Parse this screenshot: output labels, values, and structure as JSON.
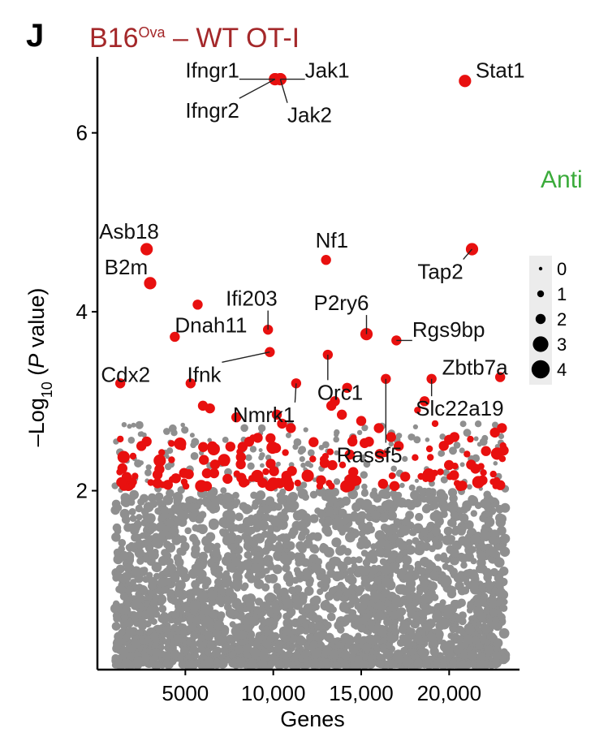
{
  "panel": {
    "letter": "J"
  },
  "title": {
    "base": "B16",
    "superscript": "Ova",
    "rest": " – WT OT-I"
  },
  "side_note": "Anti",
  "colors": {
    "significant": "#e8100f",
    "background": "#8f8f8f",
    "title": "#a4282a",
    "side_note": "#3bab3b"
  },
  "chart_data": {
    "type": "scatter",
    "xlabel": "Genes",
    "ylabel_parts": [
      "–Log",
      "10",
      " (",
      "P",
      " value)"
    ],
    "x_ticks": [
      {
        "value": 5000,
        "label": "5000"
      },
      {
        "value": 10000,
        "label": "10,000"
      },
      {
        "value": 15000,
        "label": "15,000"
      },
      {
        "value": 20000,
        "label": "20,000"
      }
    ],
    "y_ticks": [
      {
        "value": 2,
        "label": "2"
      },
      {
        "value": 4,
        "label": "4"
      },
      {
        "value": 6,
        "label": "6"
      }
    ],
    "xlim": [
      0,
      24000
    ],
    "ylim": [
      0,
      6.85
    ],
    "grid": false,
    "legend": {
      "placement": "right",
      "entries": [
        {
          "label": "0",
          "size": 0
        },
        {
          "label": "1",
          "size": 1
        },
        {
          "label": "2",
          "size": 2
        },
        {
          "label": "3",
          "size": 3
        },
        {
          "label": "4",
          "size": 4
        }
      ]
    },
    "background_band": {
      "x_min": 1000,
      "x_max": 23200,
      "y_min": 0.05,
      "y_max": 2.0
    },
    "significant_threshold": 2.05,
    "labeled_genes": [
      {
        "gene": "Ifngr1",
        "x": 10100,
        "y": 6.6,
        "size": 3,
        "label_x": 5000,
        "label_y": 6.7
      },
      {
        "gene": "Jak1",
        "x": 10400,
        "y": 6.6,
        "size": 3,
        "label_x": 11800,
        "label_y": 6.7
      },
      {
        "gene": "Ifngr2",
        "x": 10100,
        "y": 6.6,
        "size": 3,
        "label_x": 5000,
        "label_y": 6.25
      },
      {
        "gene": "Jak2",
        "x": 10400,
        "y": 6.6,
        "size": 3,
        "label_x": 10800,
        "label_y": 6.2
      },
      {
        "gene": "Stat1",
        "x": 20900,
        "y": 6.58,
        "size": 3,
        "label_x": 21500,
        "label_y": 6.7
      },
      {
        "gene": "Asb18",
        "x": 2800,
        "y": 4.7,
        "size": 3,
        "label_x": 100,
        "label_y": 4.9
      },
      {
        "gene": "B2m",
        "x": 3000,
        "y": 4.32,
        "size": 3,
        "label_x": 400,
        "label_y": 4.5
      },
      {
        "gene": "Nf1",
        "x": 13000,
        "y": 4.58,
        "size": 2,
        "label_x": 12400,
        "label_y": 4.8
      },
      {
        "gene": "Tap2",
        "x": 21300,
        "y": 4.7,
        "size": 3,
        "label_x": 18200,
        "label_y": 4.45
      },
      {
        "gene": "Ifi203",
        "x": 9700,
        "y": 3.8,
        "size": 2,
        "label_x": 7300,
        "label_y": 4.15
      },
      {
        "gene": "P2ry6",
        "x": 15300,
        "y": 3.75,
        "size": 3,
        "label_x": 12300,
        "label_y": 4.1
      },
      {
        "gene": "Dnah11",
        "x": 4400,
        "y": 3.72,
        "size": 2,
        "label_x": 4400,
        "label_y": 3.85
      },
      {
        "gene": "Rgs9bp",
        "x": 17000,
        "y": 3.68,
        "size": 2,
        "label_x": 17900,
        "label_y": 3.8
      },
      {
        "gene": "Cdx2",
        "x": 1300,
        "y": 3.2,
        "size": 2,
        "label_x": 200,
        "label_y": 3.3
      },
      {
        "gene": "Ifnk",
        "x": 9800,
        "y": 3.55,
        "size": 2,
        "label_x": 5100,
        "label_y": 3.3
      },
      {
        "gene": "Zbtb7a",
        "x": 22900,
        "y": 3.27,
        "size": 2,
        "label_x": 19600,
        "label_y": 3.38
      },
      {
        "gene": "Orc1",
        "x": 13100,
        "y": 3.52,
        "size": 2,
        "label_x": 12500,
        "label_y": 3.1
      },
      {
        "gene": "Nmrk1",
        "x": 11300,
        "y": 3.2,
        "size": 2,
        "label_x": 7700,
        "label_y": 2.85
      },
      {
        "gene": "Slc22a19",
        "x": 19000,
        "y": 3.25,
        "size": 2,
        "label_x": 18100,
        "label_y": 2.92
      },
      {
        "gene": "Rassf5",
        "x": 16400,
        "y": 3.25,
        "size": 2,
        "label_x": 13600,
        "label_y": 2.4
      }
    ],
    "significant_points": [
      {
        "x": 5700,
        "y": 4.08,
        "size": 2
      },
      {
        "x": 5300,
        "y": 3.2,
        "size": 2
      },
      {
        "x": 13500,
        "y": 3.0,
        "size": 2
      },
      {
        "x": 13900,
        "y": 2.85,
        "size": 2
      },
      {
        "x": 14200,
        "y": 3.15,
        "size": 2
      },
      {
        "x": 13300,
        "y": 2.95,
        "size": 2
      },
      {
        "x": 15000,
        "y": 2.78,
        "size": 2
      },
      {
        "x": 16700,
        "y": 2.6,
        "size": 2
      },
      {
        "x": 16000,
        "y": 2.7,
        "size": 2
      },
      {
        "x": 18600,
        "y": 3.0,
        "size": 2
      },
      {
        "x": 18200,
        "y": 2.9,
        "size": 1
      },
      {
        "x": 19200,
        "y": 2.75,
        "size": 1
      },
      {
        "x": 6000,
        "y": 2.95,
        "size": 2
      },
      {
        "x": 6400,
        "y": 2.92,
        "size": 2
      },
      {
        "x": 7900,
        "y": 2.82,
        "size": 2
      },
      {
        "x": 10200,
        "y": 2.85,
        "size": 2
      },
      {
        "x": 10500,
        "y": 2.75,
        "size": 2
      },
      {
        "x": 11000,
        "y": 2.7,
        "size": 2
      },
      {
        "x": 14500,
        "y": 2.55,
        "size": 2
      },
      {
        "x": 22600,
        "y": 2.65,
        "size": 2
      },
      {
        "x": 23000,
        "y": 2.7,
        "size": 2
      },
      {
        "x": 23100,
        "y": 2.45,
        "size": 2
      },
      {
        "x": 22500,
        "y": 2.1,
        "size": 1
      },
      {
        "x": 2500,
        "y": 2.5,
        "size": 2
      },
      {
        "x": 2800,
        "y": 2.55,
        "size": 2
      },
      {
        "x": 20300,
        "y": 2.6,
        "size": 2
      }
    ]
  }
}
